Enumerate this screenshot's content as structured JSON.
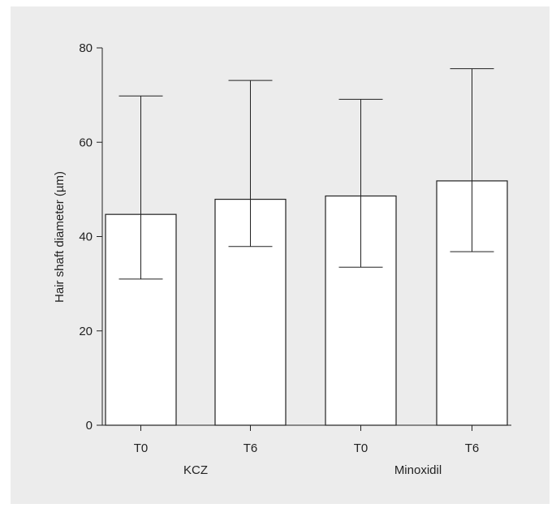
{
  "colors": {
    "panel_bg": "#ececec",
    "bar_fill": "#ffffff",
    "stroke": "#222222"
  },
  "chart_data": {
    "type": "bar",
    "title": "",
    "ylabel": "Hair shaft diameter (µm)",
    "xlabel": "",
    "ylim": [
      0,
      80
    ],
    "yticks": [
      0,
      20,
      40,
      60,
      80
    ],
    "grid": false,
    "legend": "none",
    "categories": [
      "T0",
      "T6",
      "T0",
      "T6"
    ],
    "groups": [
      {
        "label": "KCZ",
        "categories": [
          "T0",
          "T6"
        ]
      },
      {
        "label": "Minoxidil",
        "categories": [
          "T0",
          "T6"
        ]
      }
    ],
    "values": [
      44.7,
      47.9,
      48.6,
      51.8
    ],
    "error_low": [
      31.0,
      37.9,
      33.5,
      36.8
    ],
    "error_high": [
      69.8,
      73.1,
      69.1,
      75.6
    ]
  }
}
